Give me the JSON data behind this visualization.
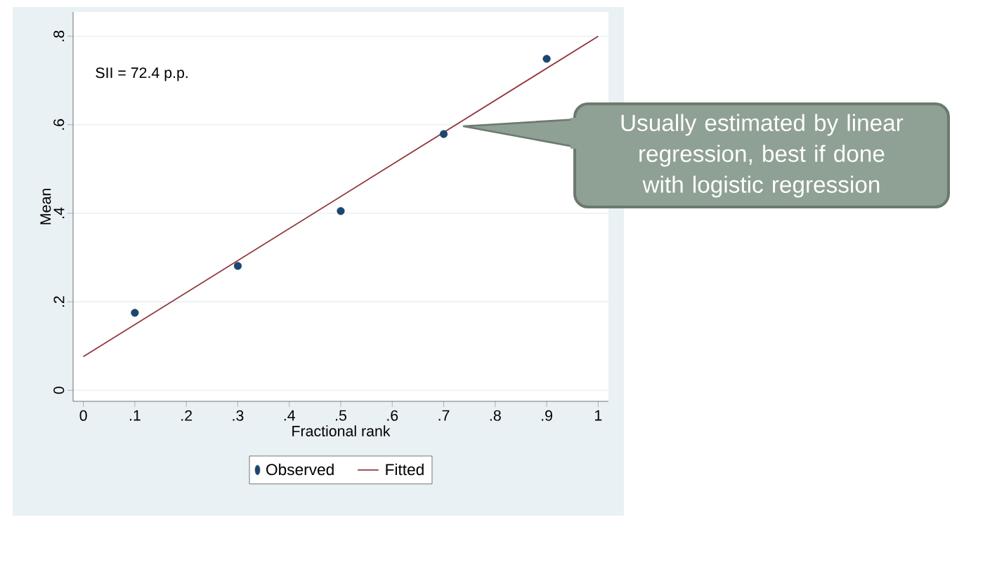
{
  "chart_data": {
    "type": "scatter",
    "xlabel": "Fractional rank",
    "ylabel": "Mean",
    "xlim": [
      -0.02,
      1.02
    ],
    "ylim": [
      -0.025,
      0.855
    ],
    "xticks": [
      0,
      {
        "value": 0.1,
        "label": ".1"
      },
      {
        "value": 0.2,
        "label": ".2"
      },
      {
        "value": 0.3,
        "label": ".3"
      },
      {
        "value": 0.4,
        "label": ".4"
      },
      {
        "value": 0.5,
        "label": ".5"
      },
      {
        "value": 0.6,
        "label": ".6"
      },
      {
        "value": 0.7,
        "label": ".7"
      },
      {
        "value": 0.8,
        "label": ".8"
      },
      {
        "value": 0.9,
        "label": ".9"
      },
      1
    ],
    "yticks": [
      0,
      {
        "value": 0.2,
        "label": ".2"
      },
      {
        "value": 0.4,
        "label": ".4"
      },
      {
        "value": 0.6,
        "label": ".6"
      },
      {
        "value": 0.8,
        "label": ".8"
      }
    ],
    "grid": "y",
    "legend": "bottom",
    "series": [
      {
        "name": "Observed",
        "marker": "circle",
        "color": "#1a476f",
        "x": [
          0.1,
          0.3,
          0.5,
          0.7,
          0.9
        ],
        "values": [
          0.175,
          0.281,
          0.405,
          0.579,
          0.749
        ]
      },
      {
        "name": "Fitted",
        "type": "line",
        "marker": "none",
        "line_style": "solid",
        "color": "#90353b",
        "x": [
          0,
          1
        ],
        "values": [
          0.076,
          0.8
        ]
      }
    ],
    "annotations": [
      "SII = 72.4 p.p.",
      "Usually estimated by linear regression, best if done with logistic regression"
    ]
  }
}
